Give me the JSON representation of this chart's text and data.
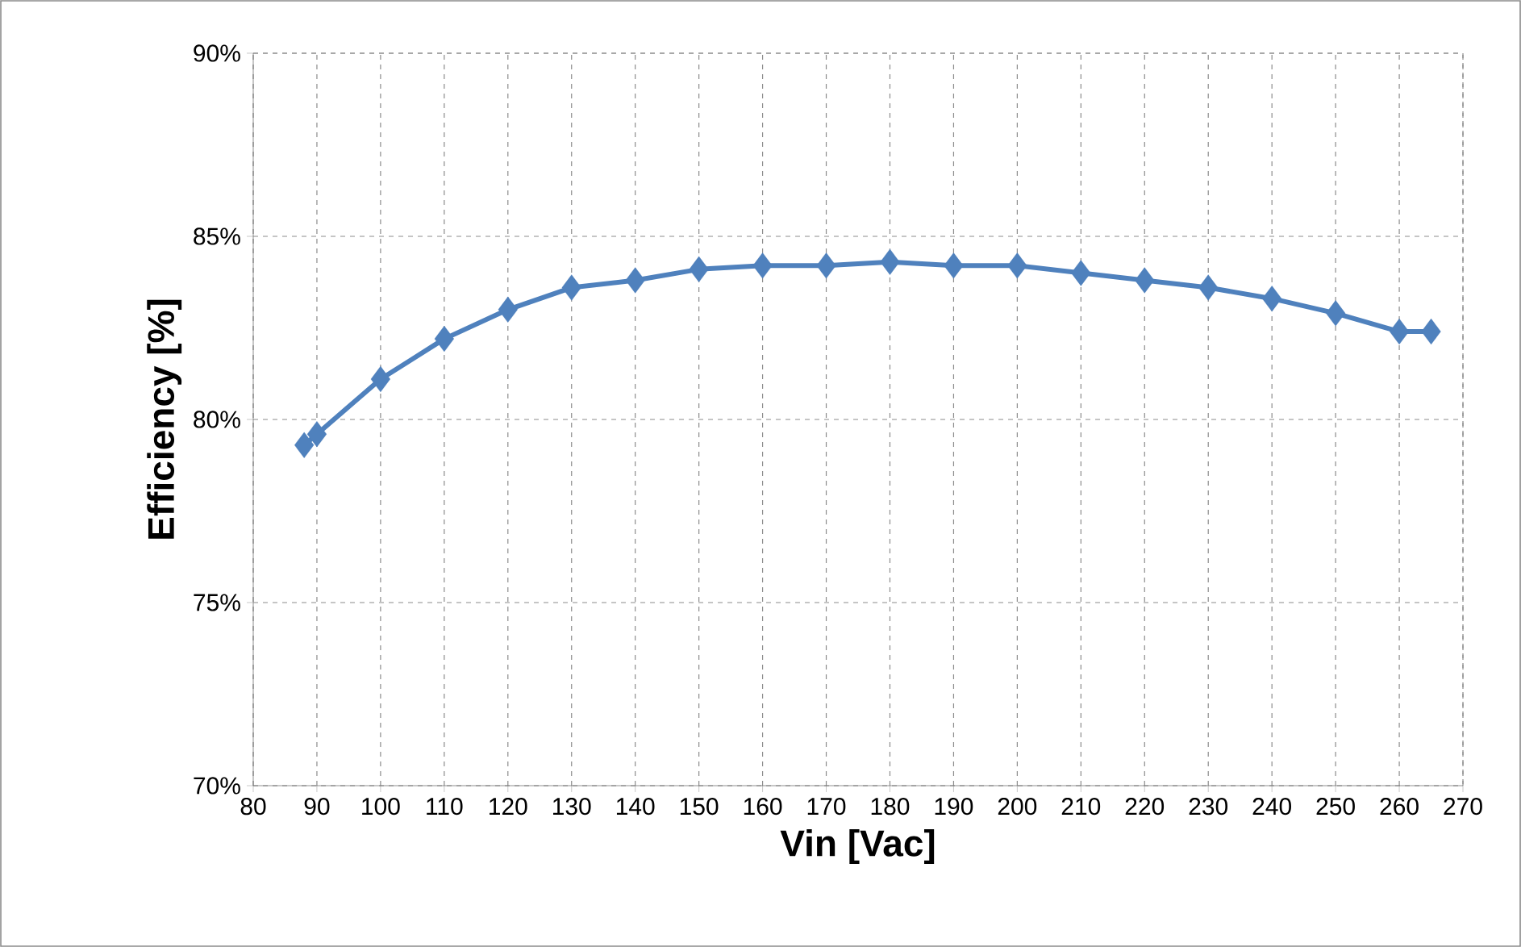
{
  "chart_data": {
    "type": "line",
    "xlabel": "Vin [Vac]",
    "ylabel": "Efficiency [%]",
    "x": [
      88,
      90,
      100,
      110,
      120,
      130,
      140,
      150,
      160,
      170,
      180,
      190,
      200,
      210,
      220,
      230,
      240,
      250,
      260,
      265
    ],
    "series": [
      {
        "color": "#4f81bd",
        "values": [
          79.3,
          79.6,
          81.1,
          82.2,
          83.0,
          83.6,
          83.8,
          84.1,
          84.2,
          84.2,
          84.3,
          84.2,
          84.2,
          84.0,
          83.8,
          83.6,
          83.3,
          82.9,
          82.4,
          82.4
        ]
      }
    ],
    "xlim": [
      80,
      270
    ],
    "xticks": [
      80,
      90,
      100,
      110,
      120,
      130,
      140,
      150,
      160,
      170,
      180,
      190,
      200,
      210,
      220,
      230,
      240,
      250,
      260,
      270
    ],
    "ylim": [
      70,
      90
    ],
    "yticks": [
      {
        "value": 70,
        "label": "70%"
      },
      {
        "value": 75,
        "label": "75%"
      },
      {
        "value": 80,
        "label": "80%"
      },
      {
        "value": 85,
        "label": "85%"
      },
      {
        "value": 90,
        "label": "90%"
      }
    ],
    "grid": true,
    "marker": "diamond",
    "line_style": "solid"
  }
}
